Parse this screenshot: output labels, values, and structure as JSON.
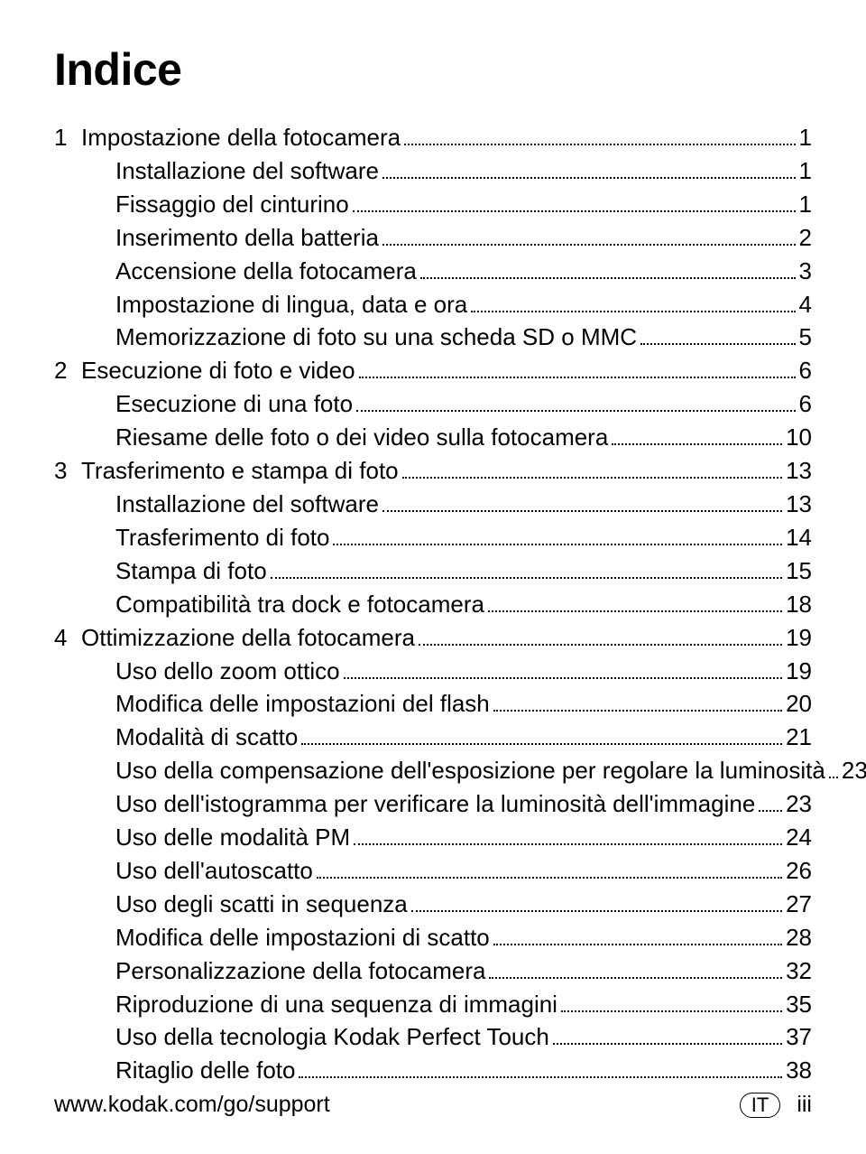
{
  "title": "Indice",
  "entries": [
    {
      "type": "chapter",
      "num": "1",
      "label": "Impostazione della fotocamera",
      "page": "1"
    },
    {
      "type": "sub",
      "label": "Installazione del software",
      "page": "1"
    },
    {
      "type": "sub",
      "label": "Fissaggio del cinturino",
      "page": "1"
    },
    {
      "type": "sub",
      "label": "Inserimento della batteria",
      "page": "2"
    },
    {
      "type": "sub",
      "label": "Accensione della fotocamera",
      "page": "3"
    },
    {
      "type": "sub",
      "label": "Impostazione di lingua, data e ora",
      "page": "4"
    },
    {
      "type": "sub",
      "label": "Memorizzazione di foto su una scheda SD o MMC",
      "page": "5"
    },
    {
      "type": "chapter",
      "num": "2",
      "label": "Esecuzione di foto e video",
      "page": "6"
    },
    {
      "type": "sub",
      "label": "Esecuzione di una foto",
      "page": "6"
    },
    {
      "type": "sub",
      "label": "Riesame delle foto o dei video sulla fotocamera",
      "page": "10"
    },
    {
      "type": "chapter",
      "num": "3",
      "label": "Trasferimento e stampa di foto",
      "page": "13"
    },
    {
      "type": "sub",
      "label": "Installazione del software",
      "page": "13"
    },
    {
      "type": "sub",
      "label": "Trasferimento di foto",
      "page": "14"
    },
    {
      "type": "sub",
      "label": "Stampa di foto",
      "page": "15"
    },
    {
      "type": "sub",
      "label": "Compatibilità tra dock e fotocamera",
      "page": "18"
    },
    {
      "type": "chapter",
      "num": "4",
      "label": "Ottimizzazione della fotocamera",
      "page": "19"
    },
    {
      "type": "sub",
      "label": "Uso dello zoom ottico",
      "page": "19"
    },
    {
      "type": "sub",
      "label": "Modifica delle impostazioni del flash",
      "page": "20"
    },
    {
      "type": "sub",
      "label": "Modalità di scatto",
      "page": "21"
    },
    {
      "type": "sub",
      "label": "Uso della compensazione dell'esposizione per regolare la luminosità",
      "page": "23"
    },
    {
      "type": "sub",
      "label": "Uso dell'istogramma per verificare la luminosità dell'immagine",
      "page": "23"
    },
    {
      "type": "sub",
      "label": "Uso delle modalità PM",
      "page": "24"
    },
    {
      "type": "sub",
      "label": "Uso dell'autoscatto",
      "page": "26"
    },
    {
      "type": "sub",
      "label": "Uso degli scatti in sequenza",
      "page": "27"
    },
    {
      "type": "sub",
      "label": "Modifica delle impostazioni di scatto",
      "page": "28"
    },
    {
      "type": "sub",
      "label": "Personalizzazione della fotocamera",
      "page": "32"
    },
    {
      "type": "sub",
      "label": "Riproduzione di una sequenza di immagini",
      "page": "35"
    },
    {
      "type": "sub",
      "label": "Uso della tecnologia Kodak Perfect Touch",
      "page": "37"
    },
    {
      "type": "sub",
      "label": "Ritaglio delle foto",
      "page": "38"
    }
  ],
  "footer": {
    "url": "www.kodak.com/go/support",
    "lang": "IT",
    "page_roman": "iii"
  }
}
